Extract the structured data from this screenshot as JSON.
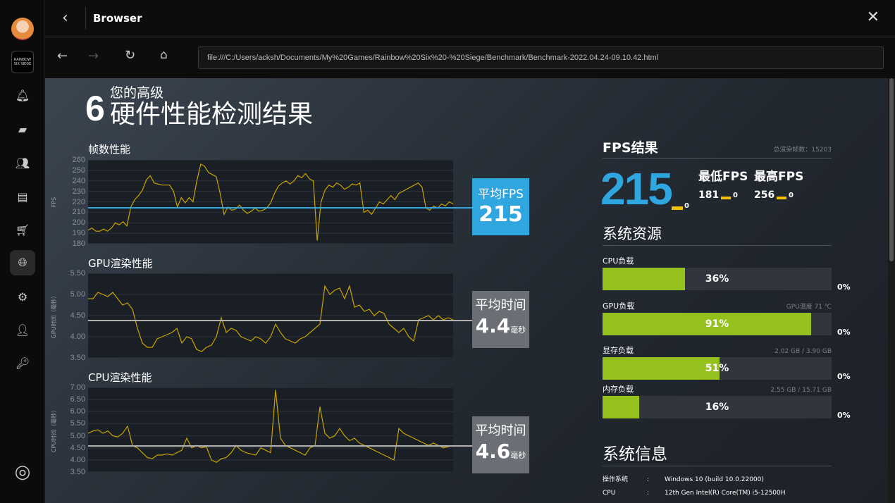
{
  "window": {
    "title": "Browser"
  },
  "sidebar": {
    "icons": [
      "bell-icon",
      "chat-icon",
      "friends-icon",
      "store-icon",
      "cart-icon",
      "globe-icon",
      "gear-icon",
      "user-settings-icon",
      "key-icon"
    ],
    "game_label": "RAINBOW SIX SIEGE"
  },
  "browser": {
    "url": "file:///C:/Users/acksh/Documents/My%20Games/Rainbow%20Six%20-%20Siege/Benchmark/Benchmark-2022.04.24-09.10.42.html"
  },
  "report": {
    "logo": "6",
    "subtitle": "您的高级",
    "title": "硬件性能检测结果",
    "fps_section": {
      "title": "帧数性能",
      "avg_label": "平均FPS",
      "avg_value": "215"
    },
    "gpu_section": {
      "title": "GPU渲染性能",
      "avg_label": "平均时间",
      "avg_value": "4.4",
      "avg_unit": "毫秒"
    },
    "cpu_section": {
      "title": "CPU渲染性能",
      "avg_label": "平均时间",
      "avg_value": "4.6",
      "avg_unit": "毫秒"
    },
    "fps_result": {
      "title": "FPS结果",
      "total_frames": "总渲染帧数：15203",
      "avg": "215",
      "avg_delta": "0",
      "min_label": "最低FPS",
      "max_label": "最高FPS",
      "min": "181",
      "min_delta": "0",
      "max": "256",
      "max_delta": "0"
    },
    "resources": {
      "title": "系统资源",
      "accent": "#95c11f",
      "items": [
        {
          "label": "CPU负载",
          "extra": "",
          "value": 36,
          "text": "36%",
          "delta": "0%"
        },
        {
          "label": "GPU负载",
          "extra": "GPU温度 71 ℃",
          "value": 91,
          "text": "91%",
          "delta": "0%"
        },
        {
          "label": "显存负载",
          "extra": "2.02 GB / 3.90 GB",
          "value": 51,
          "text": "51%",
          "delta": "0%"
        },
        {
          "label": "内存负载",
          "extra": "2.55 GB / 15.71 GB",
          "value": 16,
          "text": "16%",
          "delta": "0%"
        }
      ]
    },
    "sysinfo": {
      "title": "系统信息",
      "rows": [
        {
          "key": "操作系统",
          "sep": ":",
          "value": "Windows 10 (build 10.0.22000)"
        },
        {
          "key": "CPU",
          "sep": ":",
          "value": "12th Gen Intel(R) Core(TM) i5-12500H"
        }
      ]
    }
  },
  "chart_data": [
    {
      "type": "line",
      "ylabel": "FPS",
      "ylim": [
        180,
        260
      ],
      "yticks": [
        "260",
        "250",
        "240",
        "230",
        "220",
        "210",
        "200",
        "190",
        "180"
      ],
      "line_color": "#c9a400",
      "avg_line": 215,
      "avg_color": "#2fa6e0",
      "values": [
        193,
        195,
        192,
        192,
        194,
        192,
        195,
        200,
        198,
        201,
        197,
        215,
        222,
        226,
        231,
        241,
        245,
        238,
        237,
        236,
        236,
        236,
        230,
        215,
        224,
        219,
        224,
        220,
        240,
        256,
        254,
        248,
        246,
        244,
        228,
        208,
        215,
        212,
        213,
        217,
        212,
        209,
        211,
        214,
        211,
        212,
        214,
        219,
        228,
        235,
        238,
        240,
        237,
        240,
        245,
        243,
        247,
        242,
        240,
        183,
        220,
        231,
        236,
        234,
        238,
        236,
        232,
        234,
        237,
        236,
        238,
        210,
        212,
        208,
        214,
        220,
        218,
        222,
        226,
        222,
        228,
        230,
        232,
        234,
        236,
        238,
        234,
        214,
        212,
        216,
        214,
        218,
        216,
        220,
        218
      ]
    },
    {
      "type": "line",
      "ylabel": "GPU时间（毫秒）",
      "ylim": [
        3.5,
        5.5
      ],
      "yticks": [
        "5.50",
        "5.00",
        "4.50",
        "4.00",
        "3.50"
      ],
      "line_color": "#c9a400",
      "avg_line": 4.4,
      "avg_color": "#b0b0b0",
      "values": [
        4.9,
        4.9,
        5.05,
        5.0,
        4.95,
        5.05,
        4.9,
        4.75,
        4.8,
        4.65,
        4.2,
        3.85,
        3.75,
        3.75,
        3.95,
        4.0,
        4.05,
        4.1,
        4.2,
        3.85,
        4.0,
        3.95,
        3.7,
        3.65,
        3.75,
        3.8,
        4.0,
        4.45,
        4.1,
        4.2,
        4.15,
        4.0,
        3.95,
        3.9,
        4.0,
        3.95,
        3.85,
        4.0,
        4.3,
        4.1,
        3.95,
        3.9,
        3.85,
        3.95,
        4.0,
        4.1,
        4.2,
        4.3,
        5.2,
        5.0,
        5.1,
        5.15,
        4.9,
        5.2,
        4.7,
        4.75,
        4.6,
        4.65,
        4.5,
        4.6,
        4.55,
        4.3,
        4.2,
        4.1,
        4.2,
        4.0,
        3.9,
        4.4,
        4.45,
        4.5,
        4.4,
        4.5,
        4.4,
        4.45,
        4.4
      ]
    },
    {
      "type": "line",
      "ylabel": "CPU时间（毫秒）",
      "ylim": [
        3.5,
        7.0
      ],
      "yticks": [
        "7.00",
        "6.50",
        "6.00",
        "5.50",
        "5.00",
        "4.50",
        "4.00",
        "3.50"
      ],
      "line_color": "#c9a400",
      "avg_line": 4.6,
      "avg_color": "#b0b0b0",
      "values": [
        5.1,
        5.2,
        5.25,
        5.1,
        5.2,
        5.0,
        4.95,
        5.1,
        5.4,
        4.6,
        4.5,
        4.3,
        4.1,
        4.05,
        4.2,
        4.2,
        4.25,
        4.2,
        4.3,
        4.4,
        4.9,
        4.5,
        4.6,
        4.5,
        4.55,
        4.0,
        3.9,
        4.05,
        4.1,
        4.3,
        4.6,
        4.4,
        4.3,
        4.25,
        4.2,
        4.5,
        4.4,
        4.3,
        6.9,
        4.9,
        4.6,
        4.5,
        4.4,
        4.3,
        4.2,
        4.5,
        4.6,
        6.2,
        5.1,
        4.9,
        5.0,
        5.3,
        5.0,
        4.8,
        4.9,
        4.7,
        4.6,
        4.5,
        4.4,
        4.3,
        4.2,
        4.1,
        4.0,
        5.3,
        5.1,
        5.0,
        4.9,
        4.8,
        4.7,
        4.6,
        4.7,
        4.6,
        4.5,
        4.55,
        4.6
      ]
    }
  ]
}
